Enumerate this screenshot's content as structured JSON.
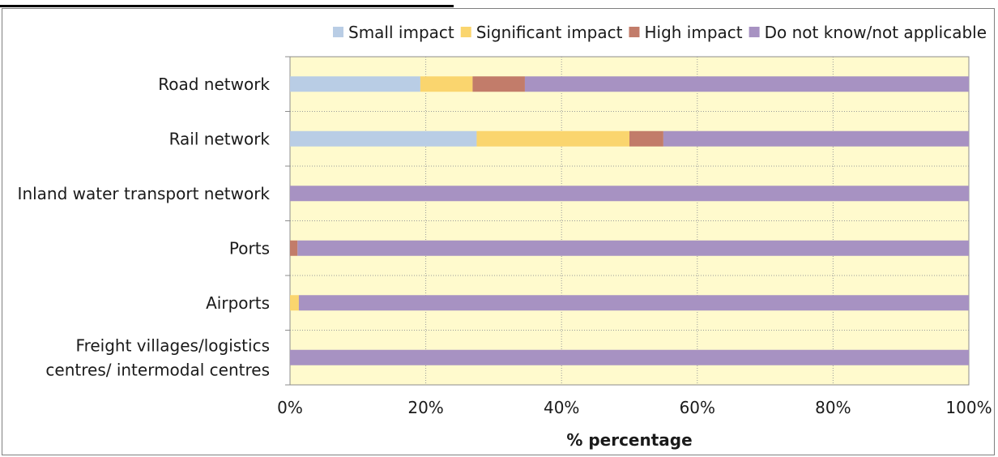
{
  "chart_data": {
    "type": "bar",
    "orientation": "horizontal",
    "stacked": "percent",
    "title": "",
    "xlabel": "% percentage",
    "ylabel": "",
    "xlim": [
      0,
      100
    ],
    "x_ticks": [
      "0%",
      "20%",
      "40%",
      "60%",
      "80%",
      "100%"
    ],
    "categories": [
      "Road network",
      "Rail network",
      "Inland water transport network",
      "Ports",
      "Airports",
      "Freight villages/logistics centres/ intermodal centres"
    ],
    "category_lines": [
      [
        "Road network"
      ],
      [
        "Rail network"
      ],
      [
        "Inland water transport network"
      ],
      [
        "Ports"
      ],
      [
        "Airports"
      ],
      [
        "Freight villages/logistics",
        "centres/ intermodal centres"
      ]
    ],
    "series": [
      {
        "name": "Small impact",
        "color": "#b9cde5",
        "values": [
          19.2,
          27.5,
          0,
          0,
          0,
          0
        ]
      },
      {
        "name": "Significant impact",
        "color": "#fad56e",
        "values": [
          7.7,
          22.5,
          0,
          0,
          1.3,
          0
        ]
      },
      {
        "name": "High impact",
        "color": "#c27c6a",
        "values": [
          7.7,
          5.0,
          0,
          1.1,
          0,
          0
        ]
      },
      {
        "name": "Do not know/not applicable",
        "color": "#a792c2",
        "values": [
          65.4,
          45.0,
          100,
          98.9,
          98.7,
          100
        ]
      }
    ],
    "grid": true,
    "legend_position": "top",
    "plot_background": "#fffacd"
  }
}
